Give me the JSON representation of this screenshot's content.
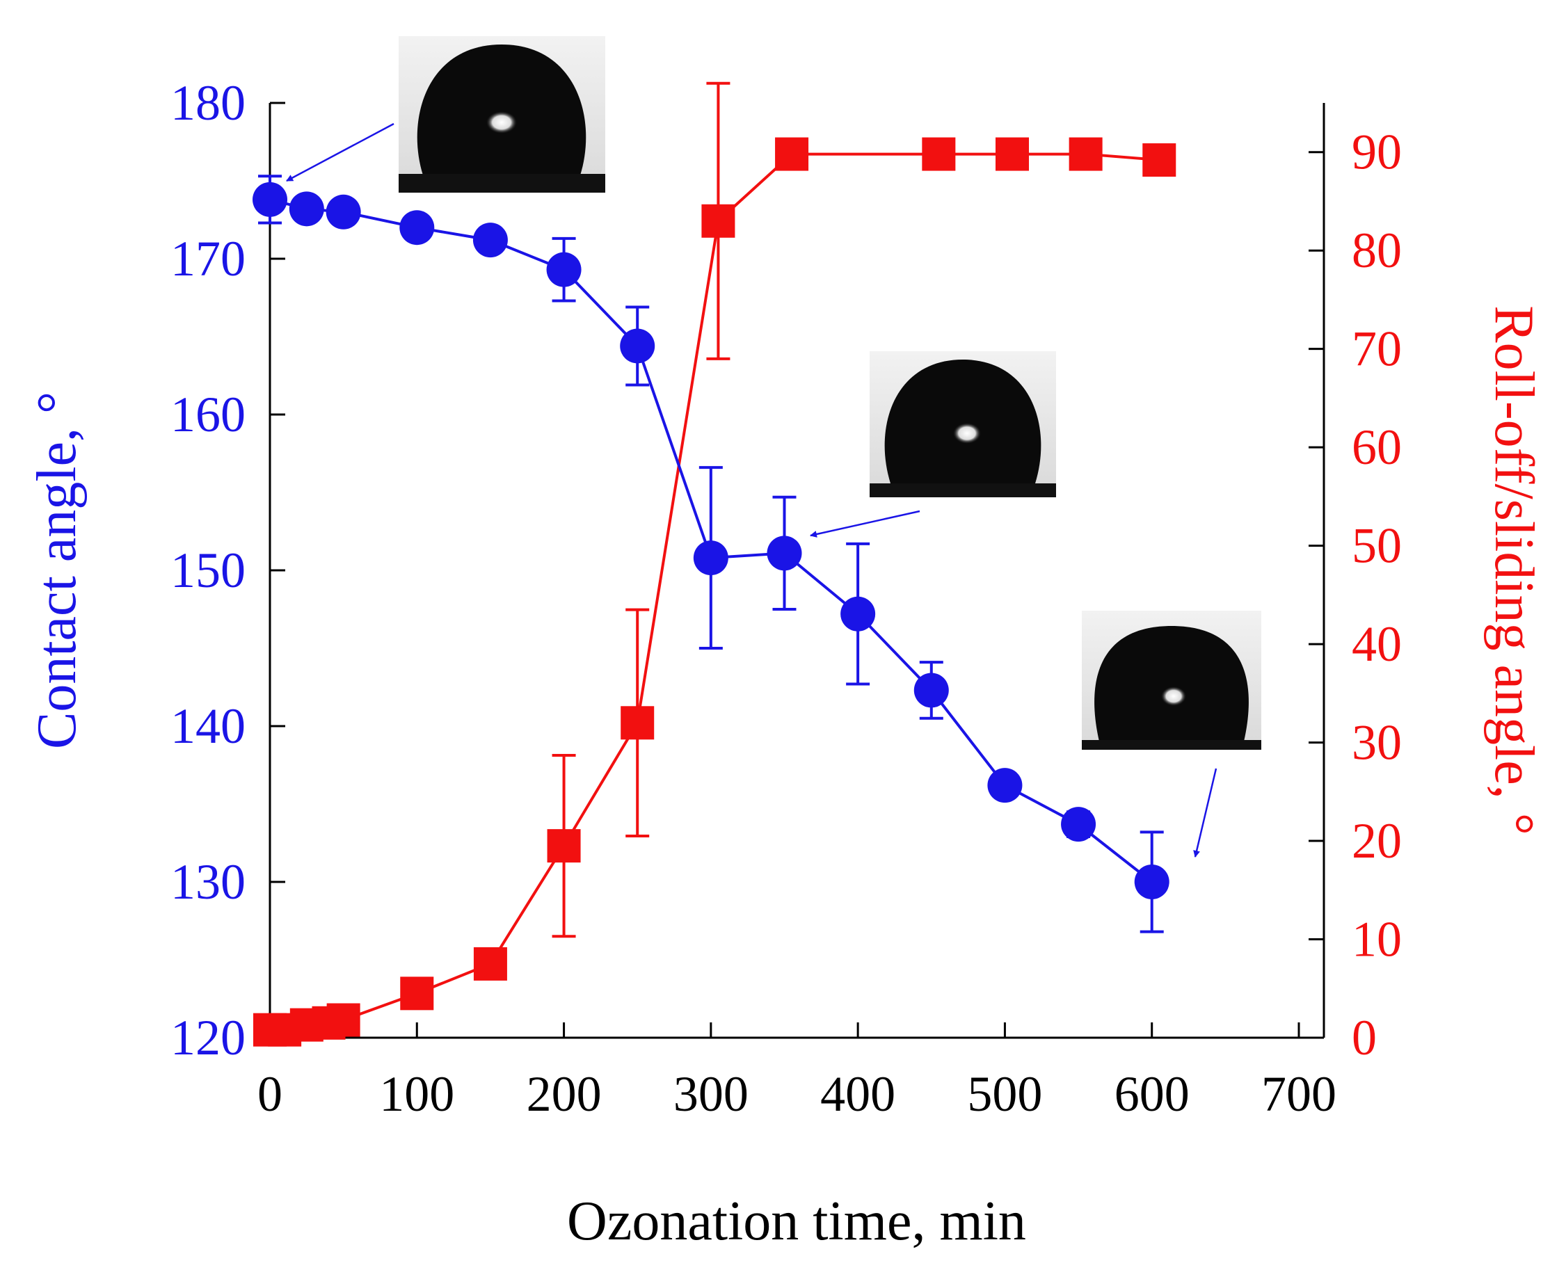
{
  "chart_data": {
    "type": "line",
    "xlabel": "Ozonation time, min",
    "ylabel": "Contact angle, °",
    "y2label": "Roll-off/sliding angle, °",
    "xlim": [
      0,
      700
    ],
    "ylim": [
      120,
      180
    ],
    "y2lim": [
      0,
      95
    ],
    "x_ticks": [
      "0",
      "100",
      "200",
      "300",
      "400",
      "500",
      "600",
      "700"
    ],
    "y_ticks": [
      "120",
      "130",
      "140",
      "150",
      "160",
      "170",
      "180"
    ],
    "y2_ticks": [
      "0",
      "10",
      "20",
      "30",
      "40",
      "50",
      "60",
      "70",
      "80",
      "90"
    ],
    "series": [
      {
        "name": "Contact angle",
        "axis": "left",
        "color": "#1a14e6",
        "marker": "circle",
        "x": [
          0,
          25,
          50,
          100,
          150,
          200,
          250,
          300,
          350,
          400,
          450,
          500,
          550,
          600
        ],
        "y": [
          173.8,
          173.2,
          173.0,
          172.0,
          171.2,
          169.3,
          164.4,
          150.8,
          151.1,
          147.2,
          142.3,
          136.2,
          133.7,
          130.0
        ],
        "err": [
          1.5,
          0,
          0,
          0,
          0,
          2.0,
          2.5,
          5.8,
          3.6,
          4.5,
          1.8,
          0,
          0.8,
          3.2
        ]
      },
      {
        "name": "Roll-off/sliding angle",
        "axis": "right",
        "color": "#f21010",
        "marker": "square",
        "x": [
          0,
          10,
          25,
          40,
          50,
          100,
          150,
          200,
          250,
          305,
          355,
          455,
          505,
          555,
          605
        ],
        "y": [
          0.8,
          0.8,
          1.3,
          1.5,
          1.8,
          4.5,
          7.5,
          19.5,
          32.0,
          83.0,
          89.8,
          89.8,
          89.8,
          89.8,
          89.2
        ],
        "err": [
          0,
          0,
          0,
          0,
          0,
          0,
          0,
          9.2,
          11.5,
          14.0,
          0,
          0,
          0,
          0,
          0
        ]
      }
    ],
    "insets": [
      {
        "name": "droplet image at 0 min",
        "points_to_x": 0
      },
      {
        "name": "droplet image at 350 min",
        "points_to_x": 350
      },
      {
        "name": "droplet image at 600 min",
        "points_to_x": 600
      }
    ]
  }
}
